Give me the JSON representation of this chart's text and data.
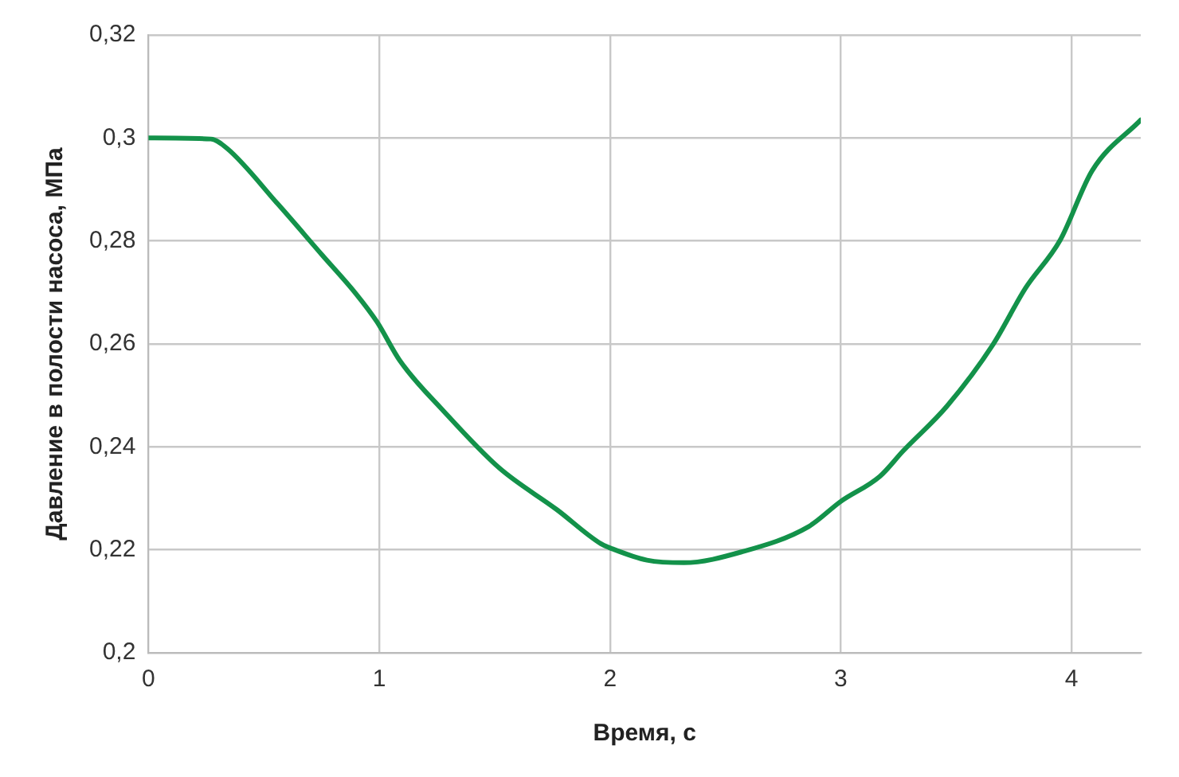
{
  "chart_data": {
    "type": "line",
    "xlabel": "Время, с",
    "ylabel": "Давление в полости насоса, МПа",
    "x": [
      0,
      0.27,
      0.34,
      0.56,
      0.75,
      0.9,
      0.99,
      1.09,
      1.28,
      1.52,
      1.77,
      1.96,
      2.01,
      2.16,
      2.32,
      2.57,
      2.86,
      3.0,
      3.17,
      3.27,
      3.46,
      3.66,
      3.8,
      3.95,
      4.09,
      4.3
    ],
    "series": [
      {
        "color": "#13924a",
        "values": [
          0.3,
          0.2998,
          0.298,
          0.2872,
          0.2774,
          0.2697,
          0.2643,
          0.2567,
          0.2469,
          0.2359,
          0.2278,
          0.2212,
          0.2202,
          0.218,
          0.2175,
          0.2196,
          0.2245,
          0.2294,
          0.2343,
          0.2392,
          0.2479,
          0.2599,
          0.2708,
          0.2801,
          0.2937,
          0.3035
        ]
      }
    ],
    "xlim": [
      0,
      4.3
    ],
    "xticks": [
      0,
      1,
      2,
      3,
      4
    ],
    "ylim": [
      0.2,
      0.32
    ],
    "yticks": [
      {
        "value": 0.2,
        "label": "0,2"
      },
      {
        "value": 0.22,
        "label": "0,22"
      },
      {
        "value": 0.24,
        "label": "0,24"
      },
      {
        "value": 0.26,
        "label": "0,26"
      },
      {
        "value": 0.28,
        "label": "0,28"
      },
      {
        "value": 0.3,
        "label": "0,3"
      },
      {
        "value": 0.32,
        "label": "0,32"
      }
    ],
    "grid": true,
    "legend": false,
    "marker": "none",
    "line_style": "solid"
  }
}
